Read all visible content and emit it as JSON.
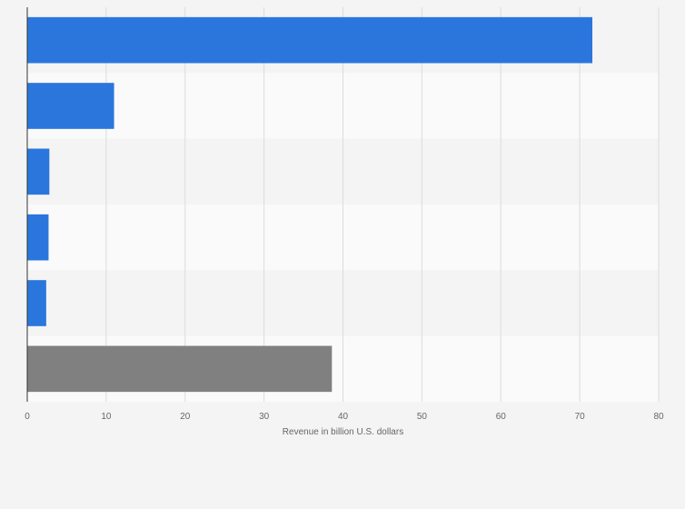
{
  "chart_data": {
    "type": "bar",
    "orientation": "horizontal",
    "categories": [
      "",
      "",
      "",
      "",
      "",
      ""
    ],
    "values": [
      71.6,
      11.0,
      2.8,
      2.7,
      2.4,
      38.6
    ],
    "bar_colors": [
      "#2a76dd",
      "#2a76dd",
      "#2a76dd",
      "#2a76dd",
      "#2a76dd",
      "#808080"
    ],
    "xlabel": "Revenue in billion U.S. dollars",
    "xlim": [
      0,
      80
    ],
    "xticks": [
      0,
      10,
      20,
      30,
      40,
      50,
      60,
      70,
      80
    ],
    "grid": "vertical",
    "legend": "none"
  },
  "colors": {
    "background": "#f4f4f4",
    "band_dark": "#f4f4f4",
    "band_light": "#fafafa",
    "grid": "#dcdcdc",
    "axis": "#333333"
  }
}
